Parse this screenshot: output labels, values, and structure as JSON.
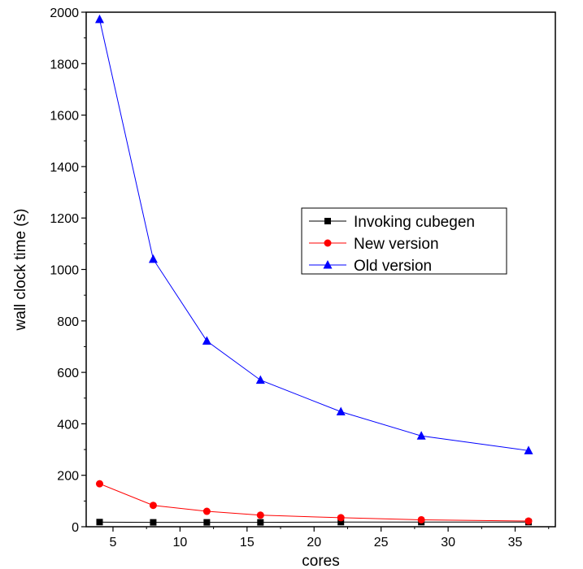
{
  "chart_data": {
    "type": "line",
    "xlabel": "cores",
    "ylabel": "wall clock time (s)",
    "xlim": [
      3,
      38
    ],
    "ylim": [
      0,
      2000
    ],
    "xticks": [
      5,
      10,
      15,
      20,
      25,
      30,
      35
    ],
    "yticks": [
      0,
      200,
      400,
      600,
      800,
      1000,
      1200,
      1400,
      1600,
      1800,
      2000
    ],
    "grid": false,
    "legend_position": "center-right",
    "x": [
      4,
      8,
      12,
      16,
      22,
      28,
      36
    ],
    "series": [
      {
        "name": "Invoking cubegen",
        "color": "#000000",
        "marker": "square",
        "values": [
          18,
          17,
          17,
          17,
          18,
          18,
          18
        ]
      },
      {
        "name": "New version",
        "color": "#ff0000",
        "marker": "circle",
        "values": [
          167,
          83,
          60,
          45,
          35,
          27,
          22
        ]
      },
      {
        "name": "Old version",
        "color": "#0000ff",
        "marker": "triangle",
        "values": [
          1972,
          1040,
          722,
          570,
          447,
          353,
          296
        ]
      }
    ]
  }
}
